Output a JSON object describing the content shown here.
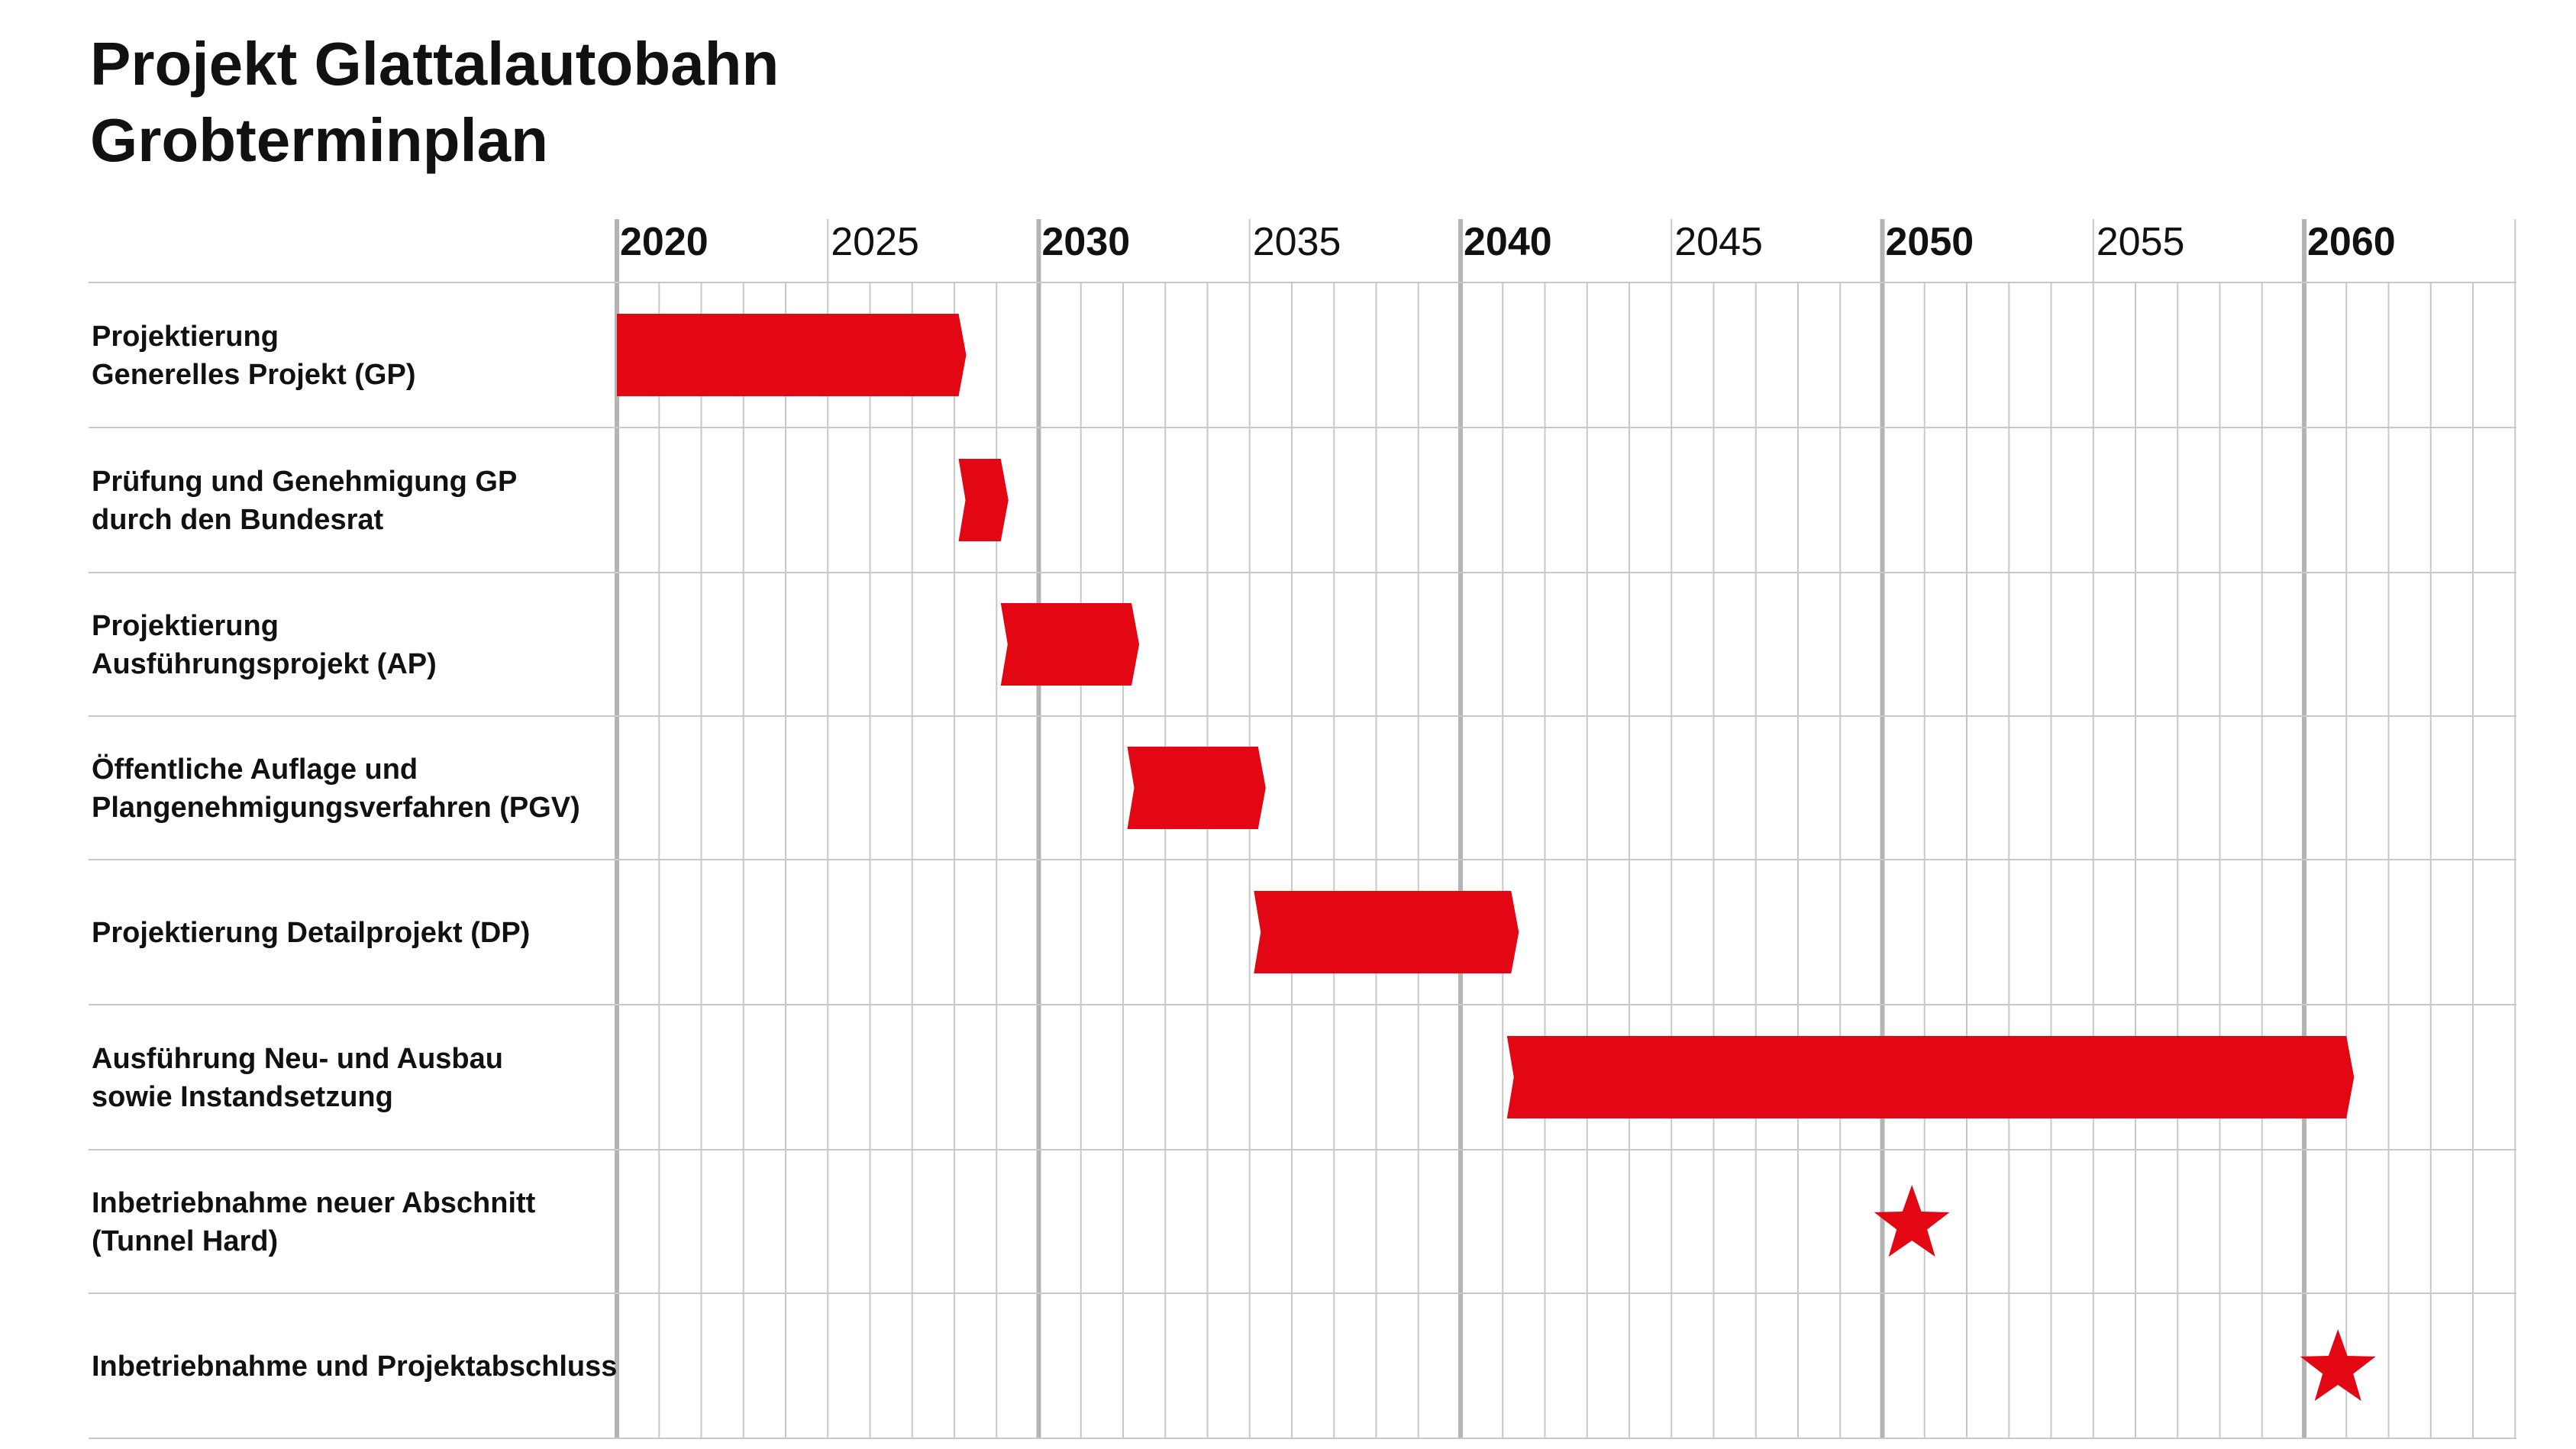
{
  "title": "Projekt Glattalautobahn",
  "subtitle": "Grobterminplan",
  "chart_data": {
    "type": "gantt",
    "x_axis": {
      "range": [
        2020,
        2065
      ],
      "grid_step": 1,
      "tick_labels": [
        {
          "year": 2020,
          "label": "2020",
          "major": true
        },
        {
          "year": 2025,
          "label": "2025",
          "major": false
        },
        {
          "year": 2030,
          "label": "2030",
          "major": true
        },
        {
          "year": 2035,
          "label": "2035",
          "major": false
        },
        {
          "year": 2040,
          "label": "2040",
          "major": true
        },
        {
          "year": 2045,
          "label": "2045",
          "major": false
        },
        {
          "year": 2050,
          "label": "2050",
          "major": true
        },
        {
          "year": 2055,
          "label": "2055",
          "major": false
        },
        {
          "year": 2060,
          "label": "2060",
          "major": true
        }
      ]
    },
    "bar_color": "#e30613",
    "grid_color": "#c8c8c8",
    "major_grid_color": "#b4b4b4",
    "tasks": [
      {
        "lines": [
          "Projektierung",
          "Generelles Projekt (GP)"
        ],
        "kind": "bar",
        "start": 2020.0,
        "end": 2028.1
      },
      {
        "lines": [
          "Prüfung und Genehmigung GP",
          "durch den Bundesrat"
        ],
        "kind": "bar",
        "start": 2028.1,
        "end": 2029.1
      },
      {
        "lines": [
          "Projektierung",
          "Ausführungsprojekt (AP)"
        ],
        "kind": "bar",
        "start": 2029.1,
        "end": 2032.2
      },
      {
        "lines": [
          "Öffentliche Auflage und",
          "Plangenehmigungsverfahren (PGV)"
        ],
        "kind": "bar",
        "start": 2032.1,
        "end": 2035.2
      },
      {
        "lines": [
          "Projektierung Detailprojekt (DP)"
        ],
        "kind": "bar",
        "start": 2035.1,
        "end": 2041.2
      },
      {
        "lines": [
          "Ausführung Neu- und Ausbau",
          "sowie Instandsetzung"
        ],
        "kind": "bar",
        "start": 2041.1,
        "end": 2061.0
      },
      {
        "lines": [
          "Inbetriebnahme neuer Abschnitt",
          "(Tunnel Hard)"
        ],
        "kind": "milestone",
        "date": 2050.7
      },
      {
        "lines": [
          "Inbetriebnahme und Projektabschluss"
        ],
        "kind": "milestone",
        "date": 2060.8
      }
    ]
  }
}
